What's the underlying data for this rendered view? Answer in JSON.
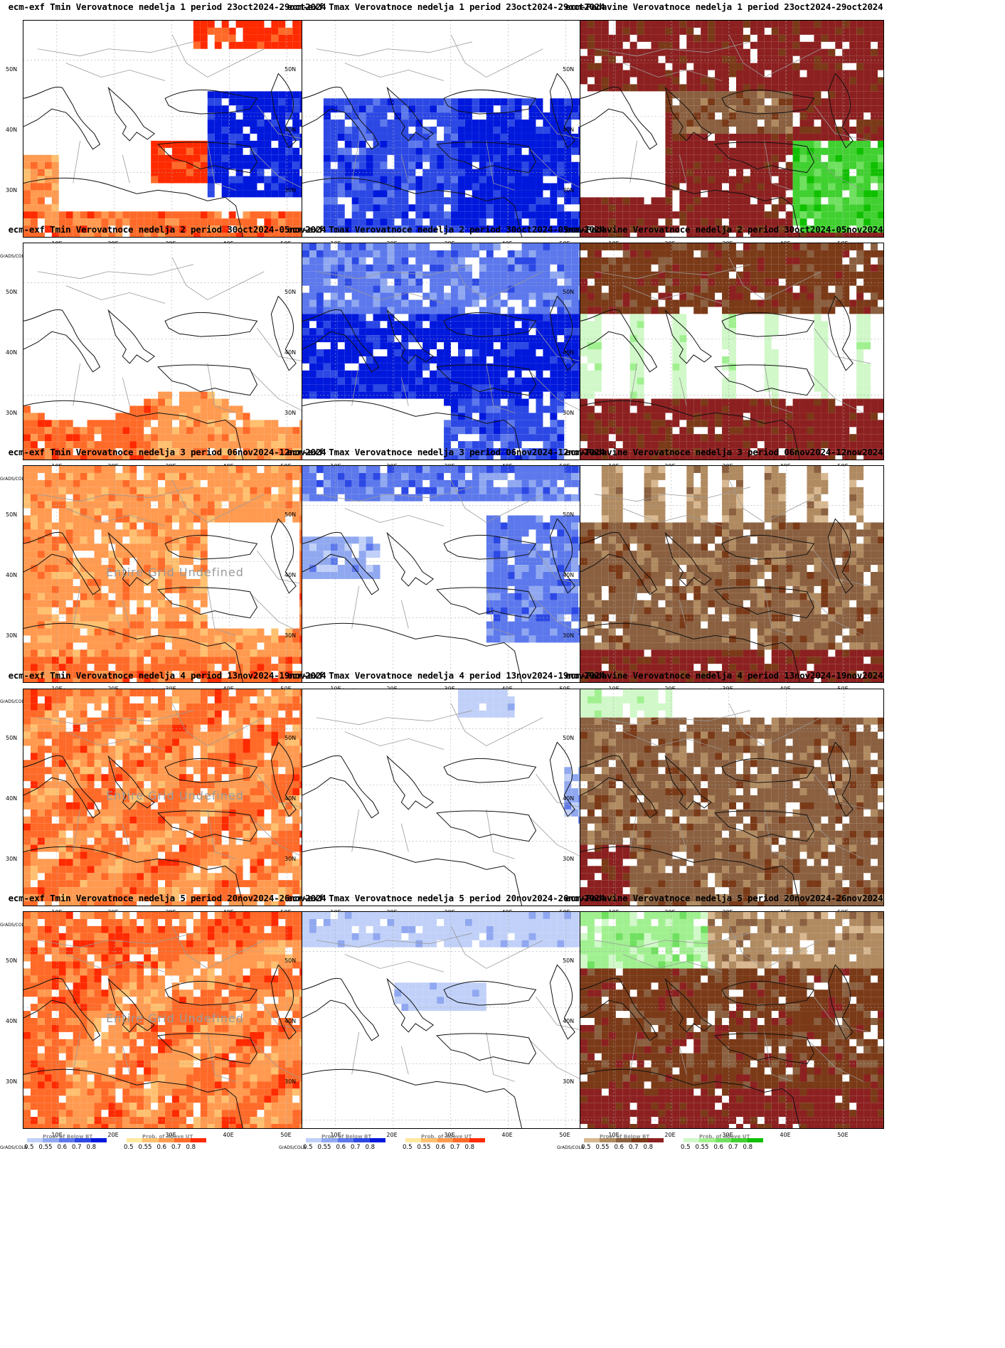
{
  "columns": [
    {
      "prefix": "ecm-exf Tmin Verovatnoce nedelja",
      "kind": "tmin"
    },
    {
      "prefix": "ecm-exf Tmax Verovatnoce nedelja",
      "kind": "tmax"
    },
    {
      "prefix": "ecm-Padavine Verovatnoce nedelja",
      "kind": "prec"
    }
  ],
  "weeks": [
    {
      "n": "1",
      "period": "period 23oct2024-29oct2024"
    },
    {
      "n": "2",
      "period": "period 30oct2024-05nov2024"
    },
    {
      "n": "3",
      "period": "period 06nov2024-12nov2024"
    },
    {
      "n": "4",
      "period": "period 13nov2024-19nov2024"
    },
    {
      "n": "5",
      "period": "period 20nov2024-26nov2024"
    }
  ],
  "axes": {
    "lat_labels": [
      "50N",
      "40N",
      "30N"
    ],
    "lon_labels": [
      "10E",
      "20E",
      "30E",
      "40E",
      "50E"
    ]
  },
  "legend": {
    "grads": "GrADS/COLA",
    "ticks": [
      "0.5",
      "0.55",
      "0.6",
      "0.7",
      "0.8"
    ],
    "below_label": "Prob. of Below BT",
    "above_label": "Prob. of Above UT",
    "undefined": "Entire Grid Undefined"
  },
  "colors": {
    "blue": [
      "#c0d0f8",
      "#90a8f0",
      "#5c78ec",
      "#2c48e4",
      "#0018dc"
    ],
    "red": [
      "#ffe8a0",
      "#ffc070",
      "#ff9a50",
      "#ff6a28",
      "#ff2a00"
    ],
    "brown": [
      "#d8b890",
      "#b08a60",
      "#8a6040",
      "#7a3a18",
      "#8c2020"
    ],
    "green": [
      "#d0f8c8",
      "#a0f090",
      "#70e060",
      "#40d030",
      "#10c000"
    ]
  },
  "panels": [
    {
      "row": 1,
      "col": 1,
      "undefined": false
    },
    {
      "row": 1,
      "col": 2,
      "undefined": false
    },
    {
      "row": 1,
      "col": 3,
      "undefined": false
    },
    {
      "row": 2,
      "col": 1,
      "undefined": false
    },
    {
      "row": 2,
      "col": 2,
      "undefined": false
    },
    {
      "row": 2,
      "col": 3,
      "undefined": false
    },
    {
      "row": 3,
      "col": 1,
      "undefined": true
    },
    {
      "row": 3,
      "col": 2,
      "undefined": false,
      "above_big": true
    },
    {
      "row": 3,
      "col": 3,
      "undefined": false
    },
    {
      "row": 4,
      "col": 1,
      "undefined": true
    },
    {
      "row": 4,
      "col": 2,
      "undefined": false
    },
    {
      "row": 4,
      "col": 3,
      "undefined": false
    },
    {
      "row": 5,
      "col": 1,
      "undefined": true
    },
    {
      "row": 5,
      "col": 2,
      "undefined": false
    },
    {
      "row": 5,
      "col": 3,
      "undefined": false
    }
  ]
}
